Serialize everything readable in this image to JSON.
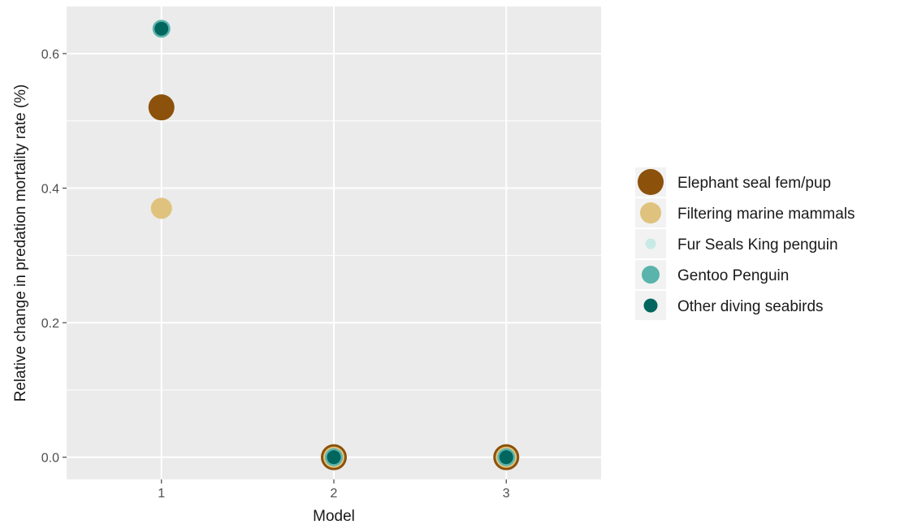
{
  "chart_data": {
    "type": "scatter",
    "title": "",
    "xlabel": "Model",
    "ylabel": "Relative change in predation mortality rate (%)",
    "x_ticks": [
      "1",
      "2",
      "3"
    ],
    "y_ticks": [
      "0.0",
      "0.2",
      "0.4",
      "0.6"
    ],
    "xlim": [
      0.45,
      3.55
    ],
    "ylim": [
      -0.033,
      0.67
    ],
    "grid": true,
    "legend_position": "right",
    "series": [
      {
        "name": "Elephant seal fem/pup",
        "color": "#8c510a",
        "size": "large",
        "points": [
          {
            "x": 1,
            "y": 0.52
          },
          {
            "x": 2,
            "y": 0.0
          },
          {
            "x": 3,
            "y": 0.0
          }
        ]
      },
      {
        "name": "Filtering marine mammals",
        "color": "#dfc27d",
        "size": "medium-large",
        "points": [
          {
            "x": 1,
            "y": 0.37
          },
          {
            "x": 2,
            "y": 0.0
          },
          {
            "x": 3,
            "y": 0.0
          }
        ]
      },
      {
        "name": "Fur Seals King penguin",
        "color": "#c7eae5",
        "size": "small",
        "points": [
          {
            "x": 1,
            "y": 0.637
          },
          {
            "x": 2,
            "y": 0.0
          },
          {
            "x": 3,
            "y": 0.0
          }
        ]
      },
      {
        "name": "Gentoo Penguin",
        "color": "#5ab4ac",
        "size": "medium",
        "points": [
          {
            "x": 1,
            "y": 0.637
          },
          {
            "x": 2,
            "y": 0.0
          },
          {
            "x": 3,
            "y": 0.0
          }
        ]
      },
      {
        "name": "Other diving seabirds",
        "color": "#01665e",
        "size": "small-medium",
        "points": [
          {
            "x": 1,
            "y": 0.637
          },
          {
            "x": 2,
            "y": 0.0
          },
          {
            "x": 3,
            "y": 0.0
          }
        ]
      }
    ]
  }
}
